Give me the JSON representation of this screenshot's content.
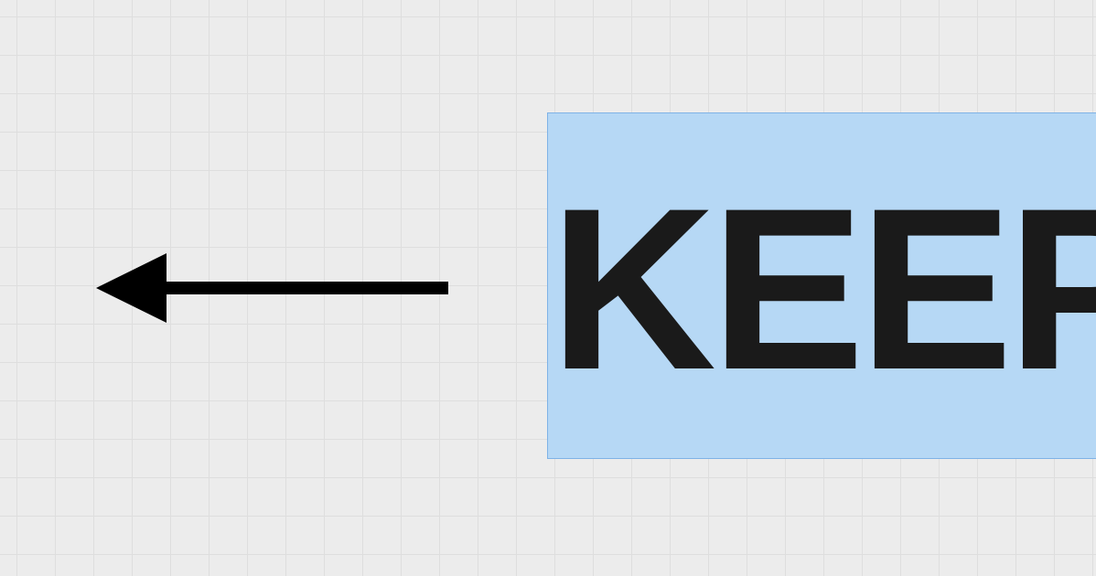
{
  "canvas": {
    "background_color": "#ececec",
    "grid_color": "#dedede"
  },
  "arrow": {
    "direction": "left",
    "color": "#000000",
    "icon": "arrow-left-icon"
  },
  "selection": {
    "fill_color": "#b6d8f5",
    "border_color": "#7fb2e6",
    "text": "KEEP",
    "text_color": "#1a1a1a"
  }
}
